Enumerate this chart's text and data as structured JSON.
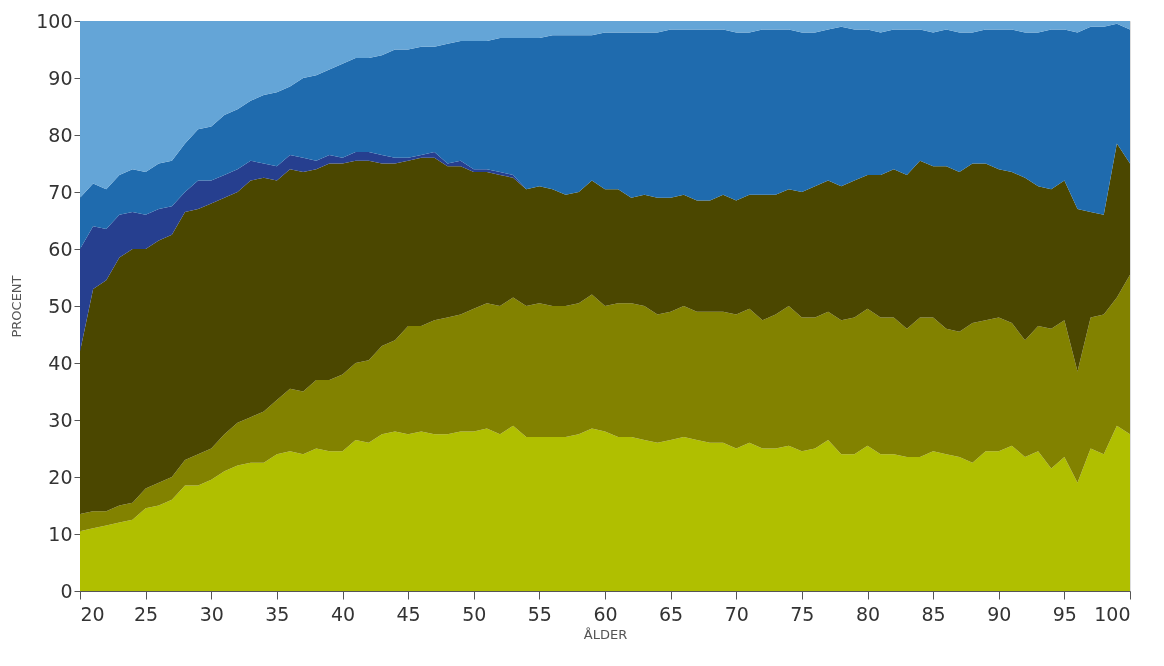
{
  "chart_data": {
    "type": "area",
    "stacked": true,
    "xlabel": "ÅLDER",
    "ylabel": "PROCENT",
    "x": [
      20,
      21,
      22,
      23,
      24,
      25,
      26,
      27,
      28,
      29,
      30,
      31,
      32,
      33,
      34,
      35,
      36,
      37,
      38,
      39,
      40,
      41,
      42,
      43,
      44,
      45,
      46,
      47,
      48,
      49,
      50,
      51,
      52,
      53,
      54,
      55,
      56,
      57,
      58,
      59,
      60,
      61,
      62,
      63,
      64,
      65,
      66,
      67,
      68,
      69,
      70,
      71,
      72,
      73,
      74,
      75,
      76,
      77,
      78,
      79,
      80,
      81,
      82,
      83,
      84,
      85,
      86,
      87,
      88,
      89,
      90,
      91,
      92,
      93,
      94,
      95,
      96,
      97,
      98,
      99,
      100
    ],
    "xlim": [
      20,
      100
    ],
    "xticks": [
      20,
      25,
      30,
      35,
      40,
      45,
      50,
      55,
      60,
      65,
      70,
      75,
      80,
      85,
      90,
      95,
      100
    ],
    "ylim": [
      0,
      100
    ],
    "yticks": [
      0,
      10,
      20,
      30,
      40,
      50,
      60,
      70,
      80,
      90,
      100
    ],
    "grid": false,
    "legend": false,
    "series": [
      {
        "color": "#b0bf00",
        "values": [
          10.5,
          11,
          11.5,
          12,
          12.5,
          14.5,
          15,
          16,
          18.5,
          18.5,
          19.5,
          21,
          22,
          22.5,
          22.5,
          24,
          24.5,
          24,
          25,
          24.5,
          24.5,
          26.5,
          26,
          27.5,
          28,
          27.5,
          28,
          27.5,
          27.5,
          28,
          28,
          28.5,
          27.5,
          29,
          27,
          27,
          27,
          27,
          27.5,
          28.5,
          28,
          27,
          27,
          26.5,
          26,
          26.5,
          27,
          26.5,
          26,
          26,
          25,
          26,
          25,
          25,
          25.5,
          24.5,
          25,
          26.5,
          24,
          24,
          25.5,
          24,
          24,
          23.5,
          23.5,
          24.5,
          24,
          23.5,
          22.5,
          24.5,
          24.5,
          25.5,
          23.5,
          24.5,
          21.5,
          23.5,
          19,
          25,
          24,
          29,
          27.5
        ]
      },
      {
        "color": "#828200",
        "values": [
          3,
          3,
          2.5,
          3,
          3,
          3.5,
          4,
          4,
          4.5,
          5.5,
          5.5,
          6.5,
          7.5,
          8,
          9,
          9.5,
          11,
          11,
          12,
          12.5,
          13.5,
          13.5,
          14.5,
          15.5,
          16,
          19,
          18.5,
          20,
          20.5,
          20.5,
          21.5,
          22,
          22.5,
          22.5,
          23,
          23.5,
          23,
          23,
          23,
          23.5,
          22,
          23.5,
          23.5,
          23.5,
          22.5,
          22.5,
          23,
          22.5,
          23,
          23,
          23.5,
          23.5,
          22.5,
          23.5,
          24.5,
          23.5,
          23,
          22.5,
          23.5,
          24,
          24,
          24,
          24,
          22.5,
          24.5,
          23.5,
          22,
          22,
          24.5,
          23,
          23.5,
          21.5,
          20.5,
          22,
          24.5,
          24,
          19.5,
          23,
          24.5,
          22.5,
          28
        ]
      },
      {
        "color": "#4b4700",
        "values": [
          28.5,
          39,
          40.5,
          43.5,
          44.5,
          42,
          42.5,
          42.5,
          43.5,
          43,
          43,
          41.5,
          40.5,
          41.5,
          41,
          38.5,
          38.5,
          38.5,
          37,
          38,
          37,
          35.5,
          35,
          32,
          31,
          29,
          29.5,
          28.5,
          26.5,
          26,
          24,
          23,
          23,
          21,
          20.5,
          20.5,
          20.5,
          19.5,
          19.5,
          20,
          20.5,
          20,
          18.5,
          19.5,
          20.5,
          20,
          19.5,
          19.5,
          19.5,
          20.5,
          20,
          20,
          22,
          21,
          20.5,
          22,
          23,
          23,
          23.5,
          24,
          23.5,
          25,
          26,
          27,
          27.5,
          26.5,
          28.5,
          28,
          28,
          27.5,
          26,
          26.5,
          28.5,
          24.5,
          24.5,
          24.5,
          28.5,
          18.5,
          17.5,
          27,
          19.5
        ]
      },
      {
        "color": "#263f8f",
        "values": [
          18,
          11,
          9,
          7.5,
          6.5,
          6,
          5.5,
          5,
          3.5,
          5,
          4,
          4,
          4,
          3.5,
          2.5,
          2.5,
          2.5,
          2.5,
          1.5,
          1.5,
          1,
          1.5,
          1.5,
          1.5,
          1,
          0.5,
          0.5,
          1,
          0.5,
          1,
          0.5,
          0.5,
          0.5,
          0.5,
          0,
          0,
          0,
          0,
          0,
          0,
          0,
          0,
          0,
          0,
          0,
          0,
          0,
          0,
          0,
          0,
          0,
          0,
          0,
          0,
          0,
          0,
          0,
          0,
          0,
          0,
          0,
          0,
          0,
          0,
          0,
          0,
          0,
          0,
          0,
          0,
          0,
          0,
          0,
          0,
          0,
          0,
          0,
          0,
          0,
          0,
          0
        ]
      },
      {
        "color": "#1f6bae",
        "values": [
          9,
          7.5,
          7,
          7,
          7.5,
          7.5,
          8,
          8,
          8.5,
          9,
          9.5,
          10.5,
          10.5,
          10.5,
          12,
          13,
          12,
          14,
          15,
          15,
          16.5,
          16.5,
          16.5,
          17.5,
          19,
          19,
          19,
          18.5,
          21,
          21,
          22.5,
          22.5,
          23.5,
          24,
          26.5,
          26,
          27,
          28,
          27.5,
          25.5,
          27.5,
          27.5,
          29,
          28.5,
          29,
          29.5,
          29,
          30,
          30,
          29,
          29.5,
          28.5,
          29,
          29,
          28,
          28,
          27,
          26.5,
          28,
          26.5,
          25.5,
          25,
          24.5,
          25.5,
          23,
          23.5,
          24,
          24.5,
          23,
          23.5,
          24.5,
          25,
          25.5,
          27,
          28,
          26.5,
          31,
          32.5,
          33,
          21,
          23.5
        ]
      },
      {
        "color": "#64a5d7",
        "values": [
          31,
          28.5,
          29.5,
          27,
          26,
          26.5,
          25,
          24.5,
          21.5,
          19,
          18.5,
          16.5,
          15.5,
          14,
          13,
          12.5,
          11.5,
          10,
          9.5,
          8.5,
          7.5,
          6.5,
          6.5,
          6,
          5,
          5,
          4.5,
          4.5,
          4,
          3.5,
          3.5,
          3.5,
          3,
          3,
          3,
          3,
          2.5,
          2.5,
          2.5,
          2.5,
          2,
          2,
          2,
          2,
          2,
          1.5,
          1.5,
          1.5,
          1.5,
          1.5,
          2,
          2,
          1.5,
          1.5,
          1.5,
          2,
          2,
          1.5,
          1,
          1.5,
          1.5,
          2,
          1.5,
          1.5,
          1.5,
          2,
          1.5,
          2,
          2,
          1.5,
          1.5,
          1.5,
          2,
          2,
          1.5,
          1.5,
          2,
          1,
          1,
          0.5,
          1.5
        ]
      }
    ]
  }
}
